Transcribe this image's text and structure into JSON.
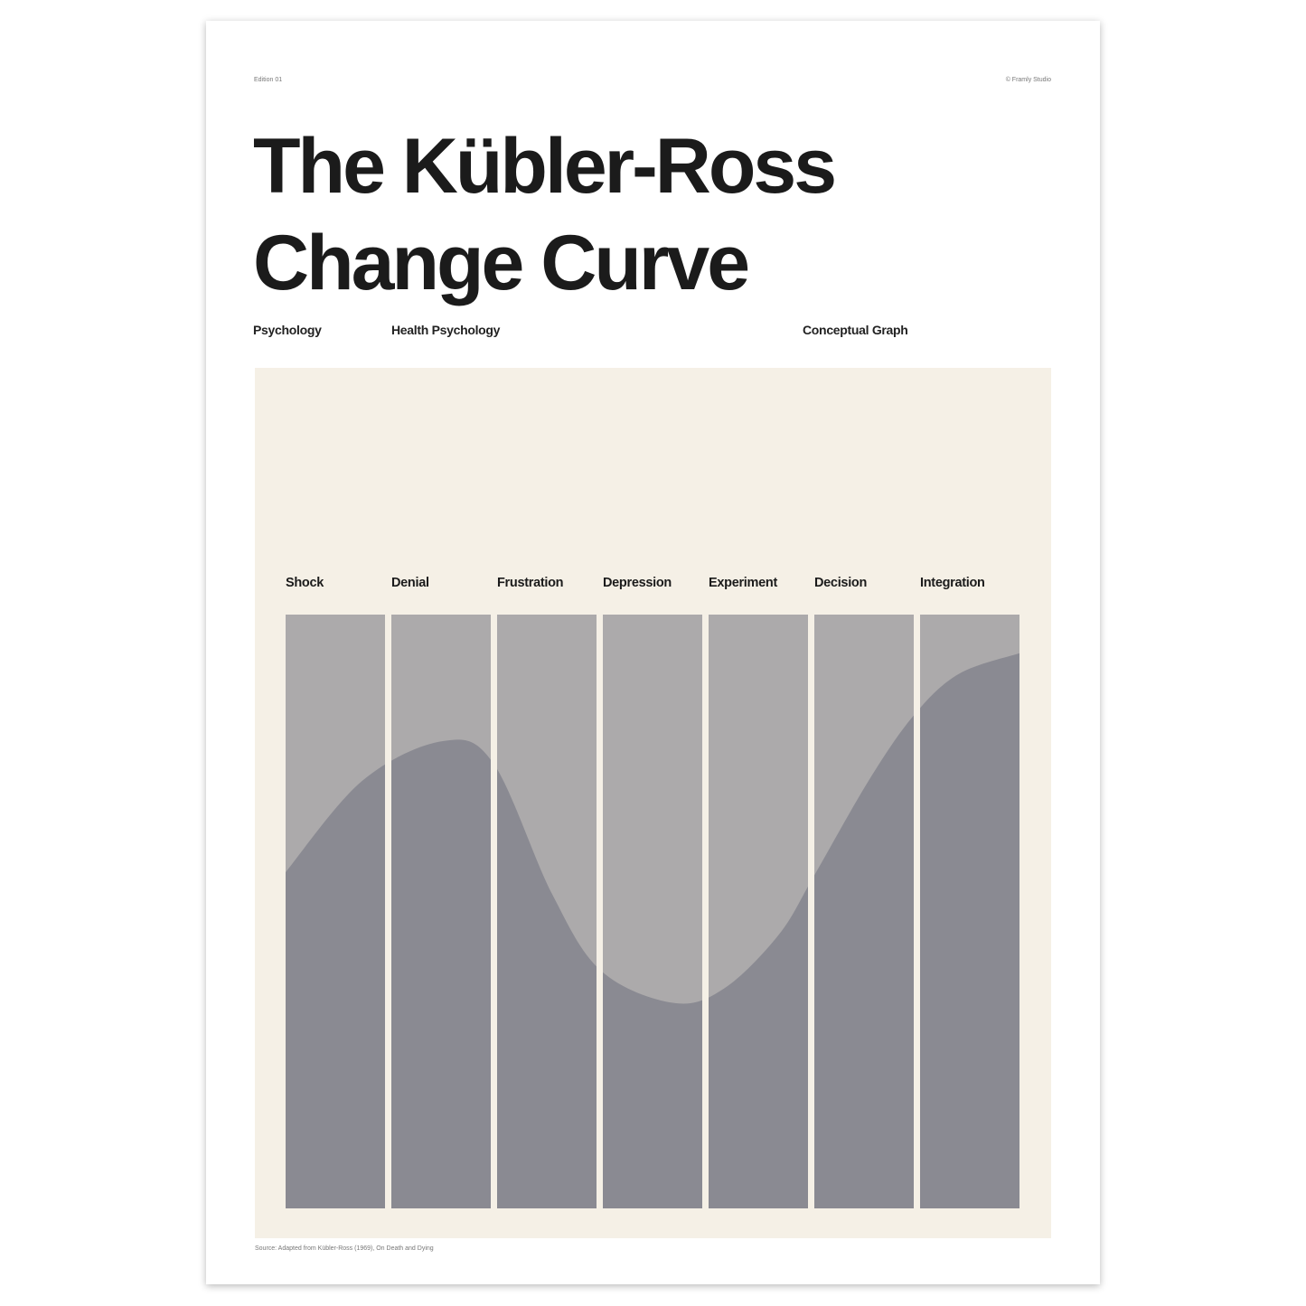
{
  "header": {
    "edition": "Edition 01",
    "credit": "© Framly Studio"
  },
  "title_lines": [
    "The Kübler-Ross",
    "Change Curve"
  ],
  "categories": [
    "Psychology",
    "Health Psychology",
    "Conceptual Graph"
  ],
  "colors": {
    "panel": "#f5f0e6",
    "column": "#acaaab",
    "curve_fill": "#8a8a92",
    "text": "#1b1b1b"
  },
  "chart_data": {
    "type": "area",
    "title": "",
    "xlabel": "",
    "ylabel": "",
    "categories": [
      "Shock",
      "Denial",
      "Frustration",
      "Depression",
      "Experiment",
      "Decision",
      "Integration"
    ],
    "grid": false,
    "ylim": [
      0,
      1
    ],
    "curve": {
      "x": [
        0,
        0.73,
        1.5,
        1.98,
        2.54,
        3.01,
        3.7,
        4.18,
        4.7,
        5.04,
        5.56,
        5.99,
        6.42,
        7
      ],
      "y": [
        0.566,
        0.72,
        0.787,
        0.75,
        0.53,
        0.4,
        0.346,
        0.37,
        0.46,
        0.56,
        0.72,
        0.83,
        0.9,
        0.935
      ]
    }
  },
  "footer": {
    "source": "Source: Adapted from Kübler-Ross (1969), On Death and Dying"
  }
}
